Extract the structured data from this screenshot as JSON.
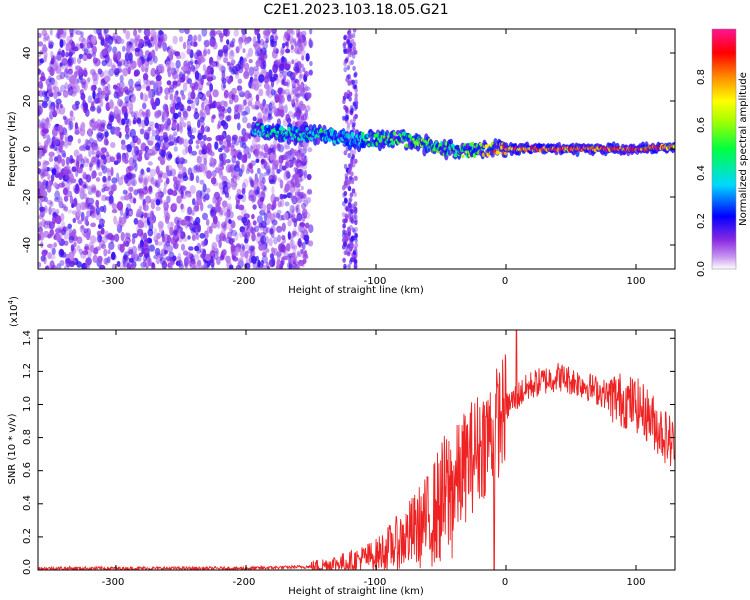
{
  "title": "C2E1.2023.103.18.05.G21",
  "top_plot": {
    "xlabel": "Height of straight line (km)",
    "ylabel": "Frequency (Hz)",
    "x_ticks": [
      "-300",
      "-200",
      "-100",
      "0",
      "100"
    ],
    "y_ticks": [
      "-40",
      "-20",
      "0",
      "20",
      "40"
    ]
  },
  "colorbar": {
    "label": "Normalized spectral amplitude",
    "ticks": [
      "0.0",
      "0.2",
      "0.4",
      "0.6",
      "0.8"
    ]
  },
  "bottom_plot": {
    "xlabel": "Height of straight line (km)",
    "ylabel": "SNR (10 * v/v)",
    "multiplier": "(x10",
    "multiplier_exp": "4",
    "x_ticks": [
      "-300",
      "-200",
      "-100",
      "0",
      "100"
    ],
    "y_ticks": [
      "0.0",
      "0.2",
      "0.4",
      "0.6",
      "0.8",
      "1.0",
      "1.2",
      "1.4"
    ]
  },
  "chart_data": [
    {
      "type": "heatmap",
      "xlabel": "Height of straight line (km)",
      "ylabel": "Frequency (Hz)",
      "xlim": [
        -360,
        130
      ],
      "ylim": [
        -50,
        50
      ],
      "colorscale": [
        "#ffffff",
        "#8a2be2",
        "#0000ff",
        "#00e5ff",
        "#00ff00",
        "#ffff00",
        "#ff8c00",
        "#ff0000",
        "#ff1493"
      ],
      "ridge": {
        "x": [
          -195,
          -180,
          -160,
          -140,
          -120,
          -100,
          -80,
          -60,
          -40,
          -20,
          0,
          20,
          60,
          100,
          130
        ],
        "freq": [
          8,
          7,
          6,
          6,
          4,
          4,
          4,
          2,
          -1,
          0,
          0,
          0,
          0,
          0,
          1
        ],
        "amplitude": [
          0.45,
          0.5,
          0.45,
          0.5,
          0.4,
          0.55,
          0.6,
          0.6,
          0.55,
          0.7,
          0.95,
          0.95,
          0.95,
          0.95,
          0.95
        ]
      }
    },
    {
      "type": "line",
      "xlabel": "Height of straight line (km)",
      "ylabel": "SNR (10 * v/v)",
      "xlim": [
        -360,
        130
      ],
      "ylim": [
        0,
        1.45
      ],
      "y_multiplier": 10000,
      "series": [
        {
          "color": "#ee2222",
          "x": [
            -360,
            -300,
            -200,
            -150,
            -120,
            -100,
            -80,
            -60,
            -40,
            -30,
            -20,
            -10,
            0,
            10,
            20,
            40,
            60,
            80,
            100,
            110,
            120,
            130
          ],
          "y": [
            0.01,
            0.01,
            0.01,
            0.02,
            0.05,
            0.09,
            0.18,
            0.3,
            0.5,
            0.65,
            0.75,
            0.85,
            0.98,
            1.06,
            1.12,
            1.17,
            1.12,
            1.05,
            1.0,
            0.93,
            0.83,
            0.75
          ]
        }
      ]
    }
  ]
}
